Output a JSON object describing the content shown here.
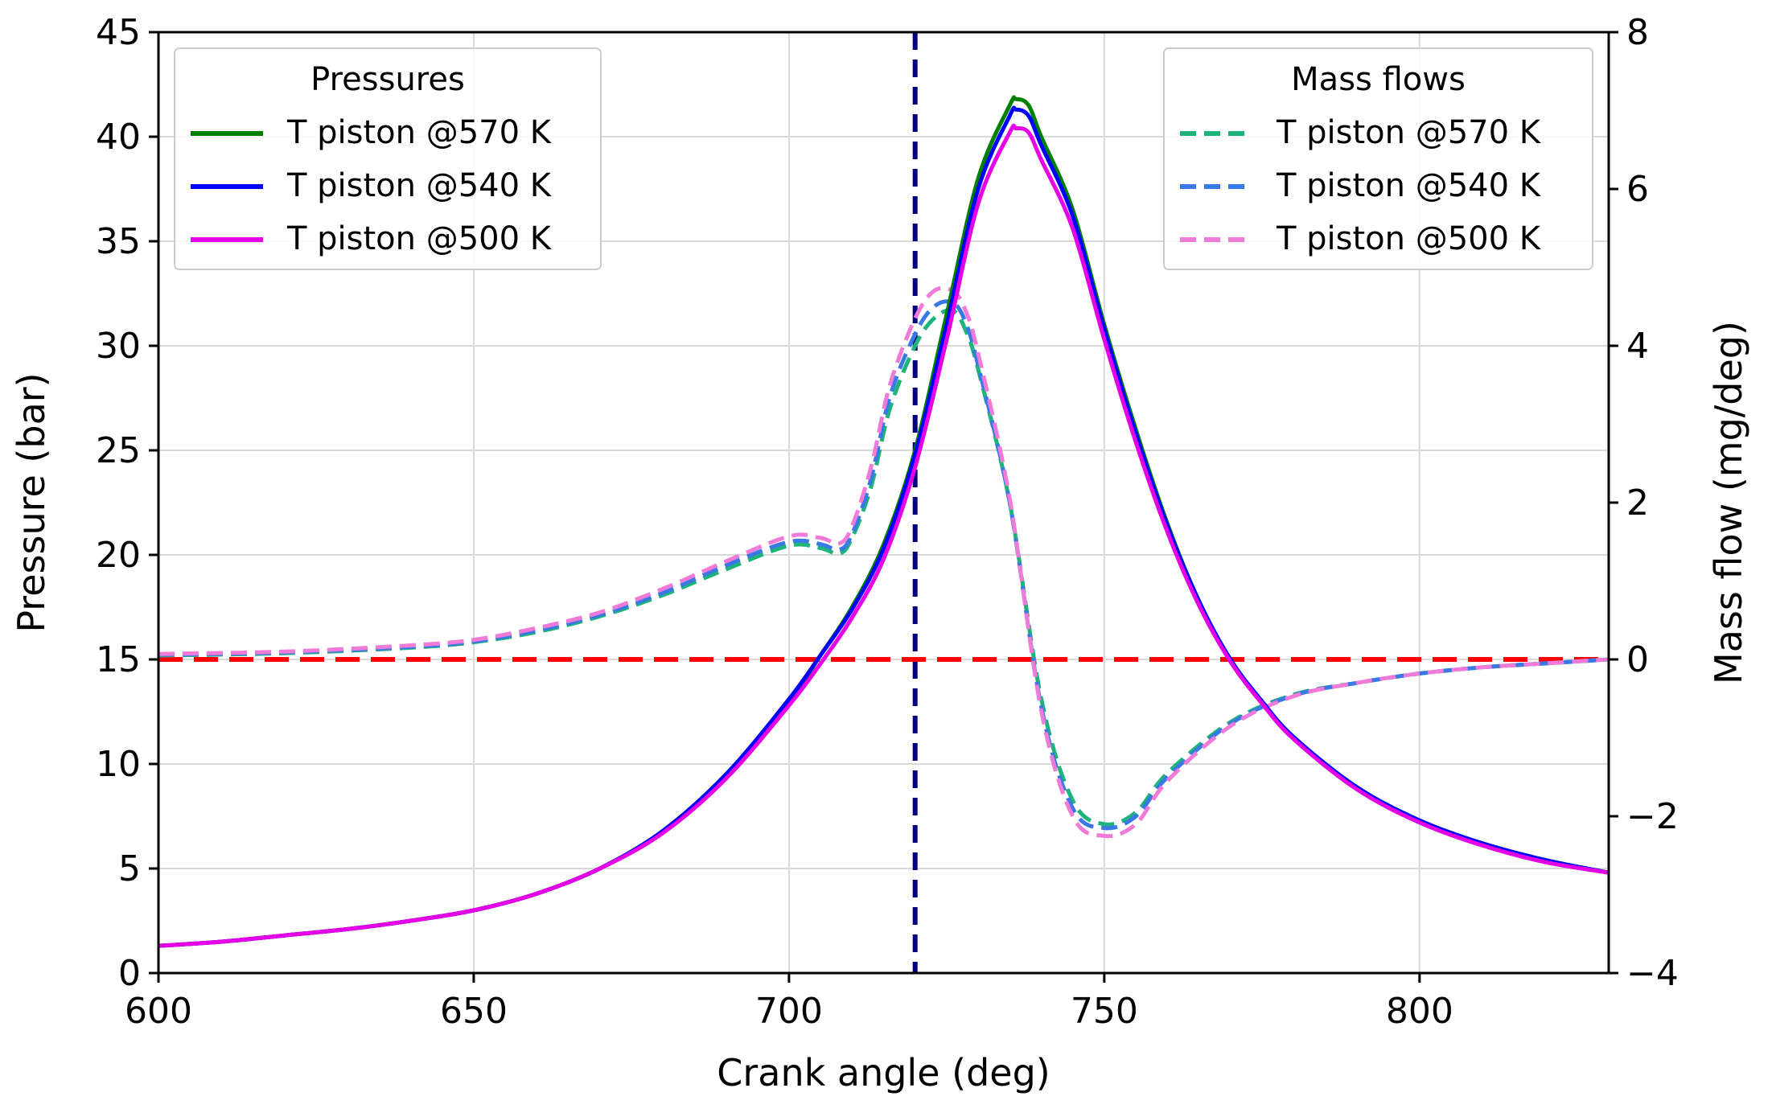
{
  "chart_data": {
    "type": "line",
    "xlabel": "Crank angle (deg)",
    "ylabel_left": "Pressure (bar)",
    "ylabel_right": "Mass flow (mg/deg)",
    "xlim": [
      600,
      830
    ],
    "ylim_left": [
      0,
      45
    ],
    "ylim_right": [
      -4,
      8
    ],
    "x_ticks": [
      600,
      650,
      700,
      750,
      800
    ],
    "y_left_ticks": [
      0,
      5,
      10,
      15,
      20,
      25,
      30,
      35,
      40,
      45
    ],
    "y_right_ticks": [
      -4,
      -2,
      0,
      2,
      4,
      6,
      8
    ],
    "y_right_tick_labels": [
      "−4",
      "−2",
      "0",
      "2",
      "4",
      "6",
      "8"
    ],
    "grid": true,
    "reference_lines": [
      {
        "name": "tdc",
        "orientation": "vertical",
        "x": 720,
        "color": "#000080",
        "style": "dashed"
      },
      {
        "name": "zero-mass-flow",
        "orientation": "horizontal",
        "axis": "right",
        "y": 0,
        "color": "#ff0000",
        "style": "dashed"
      }
    ],
    "legend_pressures": {
      "title": "Pressures",
      "placement": "top-left",
      "entries": [
        {
          "label": "T piston @570 K",
          "color": "#008000"
        },
        {
          "label": "T piston @540 K",
          "color": "#0000ff"
        },
        {
          "label": "T piston @500 K",
          "color": "#e600e6"
        }
      ]
    },
    "legend_mass_flows": {
      "title": "Mass flows",
      "placement": "top-right",
      "entries": [
        {
          "label": "T piston @570 K",
          "color": "#1db47a"
        },
        {
          "label": "T piston @540 K",
          "color": "#3a78e6"
        },
        {
          "label": "T piston @500 K",
          "color": "#f07ad8"
        }
      ]
    },
    "series_pressure": [
      {
        "name": "T piston @570 K",
        "color": "#008000",
        "x": [
          600,
          610,
          620,
          630,
          640,
          650,
          660,
          670,
          680,
          690,
          700,
          705,
          710,
          715,
          720,
          725,
          730,
          735,
          736,
          738,
          740,
          745,
          750,
          755,
          760,
          765,
          770,
          775,
          780,
          790,
          800,
          810,
          820,
          830
        ],
        "y": [
          1.3,
          1.5,
          1.8,
          2.1,
          2.5,
          3.0,
          3.8,
          5.0,
          6.8,
          9.5,
          13.0,
          15.2,
          17.5,
          20.5,
          25.0,
          31.5,
          38.0,
          41.5,
          41.8,
          41.5,
          40.0,
          36.5,
          31.0,
          26.0,
          21.5,
          17.8,
          15.0,
          13.0,
          11.3,
          8.9,
          7.3,
          6.2,
          5.4,
          4.8
        ]
      },
      {
        "name": "T piston @540 K",
        "color": "#0000ff",
        "x": [
          600,
          610,
          620,
          630,
          640,
          650,
          660,
          670,
          680,
          690,
          700,
          705,
          710,
          715,
          720,
          725,
          730,
          735,
          736,
          738,
          740,
          745,
          750,
          755,
          760,
          765,
          770,
          775,
          780,
          790,
          800,
          810,
          820,
          830
        ],
        "y": [
          1.3,
          1.5,
          1.8,
          2.1,
          2.5,
          3.0,
          3.8,
          5.0,
          6.8,
          9.5,
          13.1,
          15.2,
          17.4,
          20.3,
          24.8,
          31.0,
          37.5,
          41.0,
          41.3,
          41.0,
          39.6,
          36.2,
          30.8,
          25.8,
          21.4,
          17.8,
          15.0,
          13.0,
          11.3,
          8.9,
          7.3,
          6.2,
          5.4,
          4.8
        ]
      },
      {
        "name": "T piston @500 K",
        "color": "#e600e6",
        "x": [
          600,
          610,
          620,
          630,
          640,
          650,
          660,
          670,
          680,
          690,
          700,
          705,
          710,
          715,
          720,
          725,
          730,
          735,
          736,
          738,
          740,
          745,
          750,
          755,
          760,
          765,
          770,
          775,
          780,
          790,
          800,
          810,
          820,
          830
        ],
        "y": [
          1.3,
          1.5,
          1.8,
          2.1,
          2.5,
          3.0,
          3.8,
          5.0,
          6.7,
          9.3,
          12.8,
          14.8,
          17.0,
          19.8,
          24.2,
          30.3,
          36.8,
          40.2,
          40.4,
          40.2,
          38.9,
          35.6,
          30.3,
          25.4,
          21.1,
          17.6,
          14.9,
          12.9,
          11.2,
          8.8,
          7.2,
          6.1,
          5.3,
          4.8
        ]
      }
    ],
    "series_mass_flow": [
      {
        "name": "T piston @570 K",
        "color": "#1db47a",
        "x": [
          600,
          620,
          640,
          650,
          660,
          670,
          680,
          690,
          700,
          705,
          708,
          710,
          713,
          716,
          720,
          723,
          726,
          728,
          730,
          735,
          740,
          745,
          750,
          755,
          760,
          770,
          780,
          790,
          800,
          810,
          820,
          830
        ],
        "y": [
          0.05,
          0.08,
          0.15,
          0.22,
          0.35,
          0.55,
          0.82,
          1.15,
          1.45,
          1.42,
          1.35,
          1.55,
          2.2,
          3.2,
          4.0,
          4.35,
          4.45,
          4.2,
          3.7,
          2.0,
          -0.5,
          -1.8,
          -2.1,
          -1.95,
          -1.45,
          -0.8,
          -0.45,
          -0.3,
          -0.18,
          -0.1,
          -0.05,
          0.0
        ]
      },
      {
        "name": "T piston @540 K",
        "color": "#3a78e6",
        "x": [
          600,
          620,
          640,
          650,
          660,
          670,
          680,
          690,
          700,
          705,
          708,
          710,
          713,
          716,
          720,
          723,
          726,
          728,
          730,
          735,
          740,
          745,
          750,
          755,
          760,
          770,
          780,
          790,
          800,
          810,
          820,
          830
        ],
        "y": [
          0.06,
          0.09,
          0.16,
          0.23,
          0.37,
          0.57,
          0.85,
          1.2,
          1.5,
          1.47,
          1.4,
          1.6,
          2.3,
          3.35,
          4.15,
          4.5,
          4.55,
          4.3,
          3.75,
          2.0,
          -0.6,
          -1.9,
          -2.15,
          -2.0,
          -1.5,
          -0.82,
          -0.46,
          -0.3,
          -0.18,
          -0.1,
          -0.05,
          0.0
        ]
      },
      {
        "name": "T piston @500 K",
        "color": "#f07ad8",
        "x": [
          600,
          620,
          640,
          650,
          660,
          670,
          680,
          690,
          700,
          705,
          708,
          710,
          713,
          716,
          720,
          723,
          726,
          728,
          730,
          735,
          740,
          745,
          750,
          755,
          760,
          770,
          780,
          790,
          800,
          810,
          820,
          830
        ],
        "y": [
          0.07,
          0.1,
          0.18,
          0.25,
          0.4,
          0.6,
          0.9,
          1.25,
          1.57,
          1.55,
          1.48,
          1.7,
          2.45,
          3.5,
          4.35,
          4.7,
          4.7,
          4.45,
          3.9,
          2.05,
          -0.65,
          -2.0,
          -2.25,
          -2.1,
          -1.55,
          -0.85,
          -0.47,
          -0.3,
          -0.18,
          -0.1,
          -0.05,
          0.0
        ]
      }
    ]
  }
}
